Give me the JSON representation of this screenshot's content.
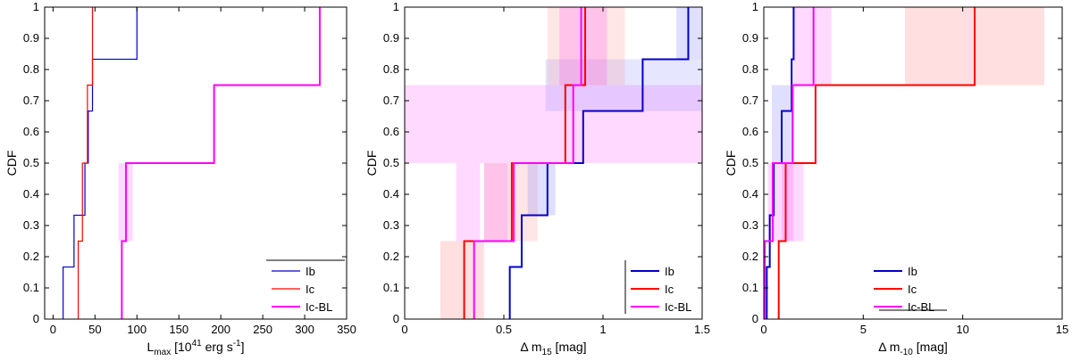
{
  "chart_data": [
    {
      "type": "line",
      "step": true,
      "xlabel": "L",
      "xlabel_sub": "max",
      "xlabel_unit": " [10",
      "xlabel_exp": "41",
      "xlabel_tail": " erg s",
      "xlabel_tail_exp": "-1",
      "xlabel_close": "]",
      "ylabel": "CDF",
      "xlim": [
        -10,
        350
      ],
      "ylim": [
        0,
        1
      ],
      "xticks": [
        0,
        50,
        100,
        150,
        200,
        250,
        300,
        350
      ],
      "xticklabels": [
        "0",
        "50",
        "100",
        "150",
        "200",
        "250",
        "300",
        "350"
      ],
      "yticks": [
        0,
        0.1,
        0.2,
        0.3,
        0.4,
        0.5,
        0.6,
        0.7,
        0.8,
        0.9,
        1
      ],
      "yticklabels": [
        "0",
        "0.1",
        "0.2",
        "0.3",
        "0.4",
        "0.5",
        "0.6",
        "0.7",
        "0.8",
        "0.9",
        "1"
      ],
      "legend_position": "bottom-right",
      "series": [
        {
          "name": "Ib",
          "color": "#0000cc",
          "width": 1.2,
          "x": [
            12,
            25,
            38,
            42,
            47,
            100
          ],
          "y": [
            0.167,
            0.333,
            0.5,
            0.667,
            0.833,
            1.0
          ]
        },
        {
          "name": "Ic",
          "color": "#ff0000",
          "width": 1.2,
          "x": [
            30,
            35,
            41,
            47
          ],
          "y": [
            0.25,
            0.5,
            0.75,
            1.0
          ]
        },
        {
          "name": "Ic-BL",
          "color": "#ff00ff",
          "width": 2,
          "x": [
            82,
            87,
            192,
            318
          ],
          "y": [
            0.25,
            0.5,
            0.75,
            1.0
          ]
        }
      ],
      "bands": [
        {
          "color": "#ff00ff",
          "opacity": 0.15,
          "x0": 78,
          "x1": 95,
          "y0": 0.25,
          "y1": 0.5
        }
      ]
    },
    {
      "type": "line",
      "step": true,
      "xlabel": "Δ m",
      "xlabel_sub": "15",
      "xlabel_unit": " [mag]",
      "ylabel": "CDF",
      "xlim": [
        0,
        1.5
      ],
      "ylim": [
        0,
        1
      ],
      "xticks": [
        0,
        0.5,
        1,
        1.5
      ],
      "xticklabels": [
        "0",
        "0.5",
        "1",
        "1.5"
      ],
      "yticks": [
        0,
        0.1,
        0.2,
        0.3,
        0.4,
        0.5,
        0.6,
        0.7,
        0.8,
        0.9,
        1
      ],
      "yticklabels": [
        "0",
        "0.1",
        "0.2",
        "0.3",
        "0.4",
        "0.5",
        "0.6",
        "0.7",
        "0.8",
        "0.9",
        "1"
      ],
      "legend_position": "bottom-right",
      "series": [
        {
          "name": "Ib",
          "color": "#0000cc",
          "width": 2,
          "x": [
            0.53,
            0.59,
            0.72,
            0.9,
            1.2,
            1.43
          ],
          "y": [
            0.167,
            0.333,
            0.5,
            0.667,
            0.833,
            1.0
          ]
        },
        {
          "name": "Ic",
          "color": "#ff0000",
          "width": 2,
          "x": [
            0.3,
            0.54,
            0.81,
            0.91
          ],
          "y": [
            0.25,
            0.5,
            0.75,
            1.0
          ]
        },
        {
          "name": "Ic-BL",
          "color": "#ff00ff",
          "width": 2,
          "x": [
            0.35,
            0.55,
            0.85,
            0.89
          ],
          "y": [
            0.25,
            0.5,
            0.75,
            1.0
          ]
        }
      ],
      "bands": [
        {
          "color": "#ff00ff",
          "opacity": 0.15,
          "x0": 0.0,
          "x1": 1.5,
          "y0": 0.5,
          "y1": 0.75
        },
        {
          "color": "#ff8080",
          "opacity": 0.25,
          "x0": 0.18,
          "x1": 0.4,
          "y0": 0,
          "y1": 0.25
        },
        {
          "color": "#ff00ff",
          "opacity": 0.15,
          "x0": 0.26,
          "x1": 0.38,
          "y0": 0.25,
          "y1": 0.5
        },
        {
          "color": "#ff8080",
          "opacity": 0.2,
          "x0": 0.4,
          "x1": 0.67,
          "y0": 0.25,
          "y1": 0.5
        },
        {
          "color": "#ff00ff",
          "opacity": 0.15,
          "x0": 0.4,
          "x1": 0.52,
          "y0": 0.25,
          "y1": 0.5
        },
        {
          "color": "#8080ff",
          "opacity": 0.25,
          "x0": 0.62,
          "x1": 0.76,
          "y0": 0.333,
          "y1": 0.5
        },
        {
          "color": "#8080ff",
          "opacity": 0.2,
          "x0": 0.71,
          "x1": 1.5,
          "y0": 0.667,
          "y1": 0.833
        },
        {
          "color": "#ff8080",
          "opacity": 0.2,
          "x0": 0.72,
          "x1": 1.11,
          "y0": 0.75,
          "y1": 1.0
        },
        {
          "color": "#ff00ff",
          "opacity": 0.15,
          "x0": 0.78,
          "x1": 1.02,
          "y0": 0.75,
          "y1": 1.0
        },
        {
          "color": "#8080ff",
          "opacity": 0.25,
          "x0": 1.37,
          "x1": 1.5,
          "y0": 0.833,
          "y1": 1.0
        }
      ]
    },
    {
      "type": "line",
      "step": true,
      "xlabel": "Δ m",
      "xlabel_sub": "-10",
      "xlabel_unit": " [mag]",
      "ylabel": "CDF",
      "xlim": [
        0,
        15
      ],
      "ylim": [
        0,
        1
      ],
      "xticks": [
        0,
        5,
        10,
        15
      ],
      "xticklabels": [
        "0",
        "5",
        "10",
        "15"
      ],
      "yticks": [
        0,
        0.1,
        0.2,
        0.3,
        0.4,
        0.5,
        0.6,
        0.7,
        0.8,
        0.9,
        1
      ],
      "yticklabels": [
        "0",
        "0.1",
        "0.2",
        "0.3",
        "0.4",
        "0.5",
        "0.6",
        "0.7",
        "0.8",
        "0.9",
        "1"
      ],
      "legend_position": "bottom-center",
      "series": [
        {
          "name": "Ib",
          "color": "#0000cc",
          "width": 2,
          "x": [
            0.15,
            0.3,
            0.5,
            0.9,
            1.4,
            1.5
          ],
          "y": [
            0.167,
            0.333,
            0.5,
            0.667,
            0.833,
            1.0
          ]
        },
        {
          "name": "Ic",
          "color": "#ff0000",
          "width": 2,
          "x": [
            0.75,
            1.1,
            2.6,
            10.6
          ],
          "y": [
            0.25,
            0.5,
            0.75,
            1.0
          ]
        },
        {
          "name": "Ic-BL",
          "color": "#ff00ff",
          "width": 2,
          "x": [
            0.05,
            0.45,
            1.45,
            2.5
          ],
          "y": [
            0.25,
            0.5,
            0.75,
            1.0
          ]
        }
      ],
      "bands": [
        {
          "color": "#ff00ff",
          "opacity": 0.15,
          "x0": 0.2,
          "x1": 1.5,
          "y0": 0.25,
          "y1": 0.5
        },
        {
          "color": "#ff00ff",
          "opacity": 0.15,
          "x0": 0.9,
          "x1": 2.0,
          "y0": 0.25,
          "y1": 0.5
        },
        {
          "color": "#8080ff",
          "opacity": 0.25,
          "x0": 0.4,
          "x1": 1.5,
          "y0": 0.5,
          "y1": 0.75
        },
        {
          "color": "#ff00ff",
          "opacity": 0.15,
          "x0": 1.5,
          "x1": 3.4,
          "y0": 0.75,
          "y1": 1.0
        },
        {
          "color": "#ff8080",
          "opacity": 0.25,
          "x0": 7.1,
          "x1": 14.1,
          "y0": 0.75,
          "y1": 1.0
        }
      ]
    }
  ]
}
